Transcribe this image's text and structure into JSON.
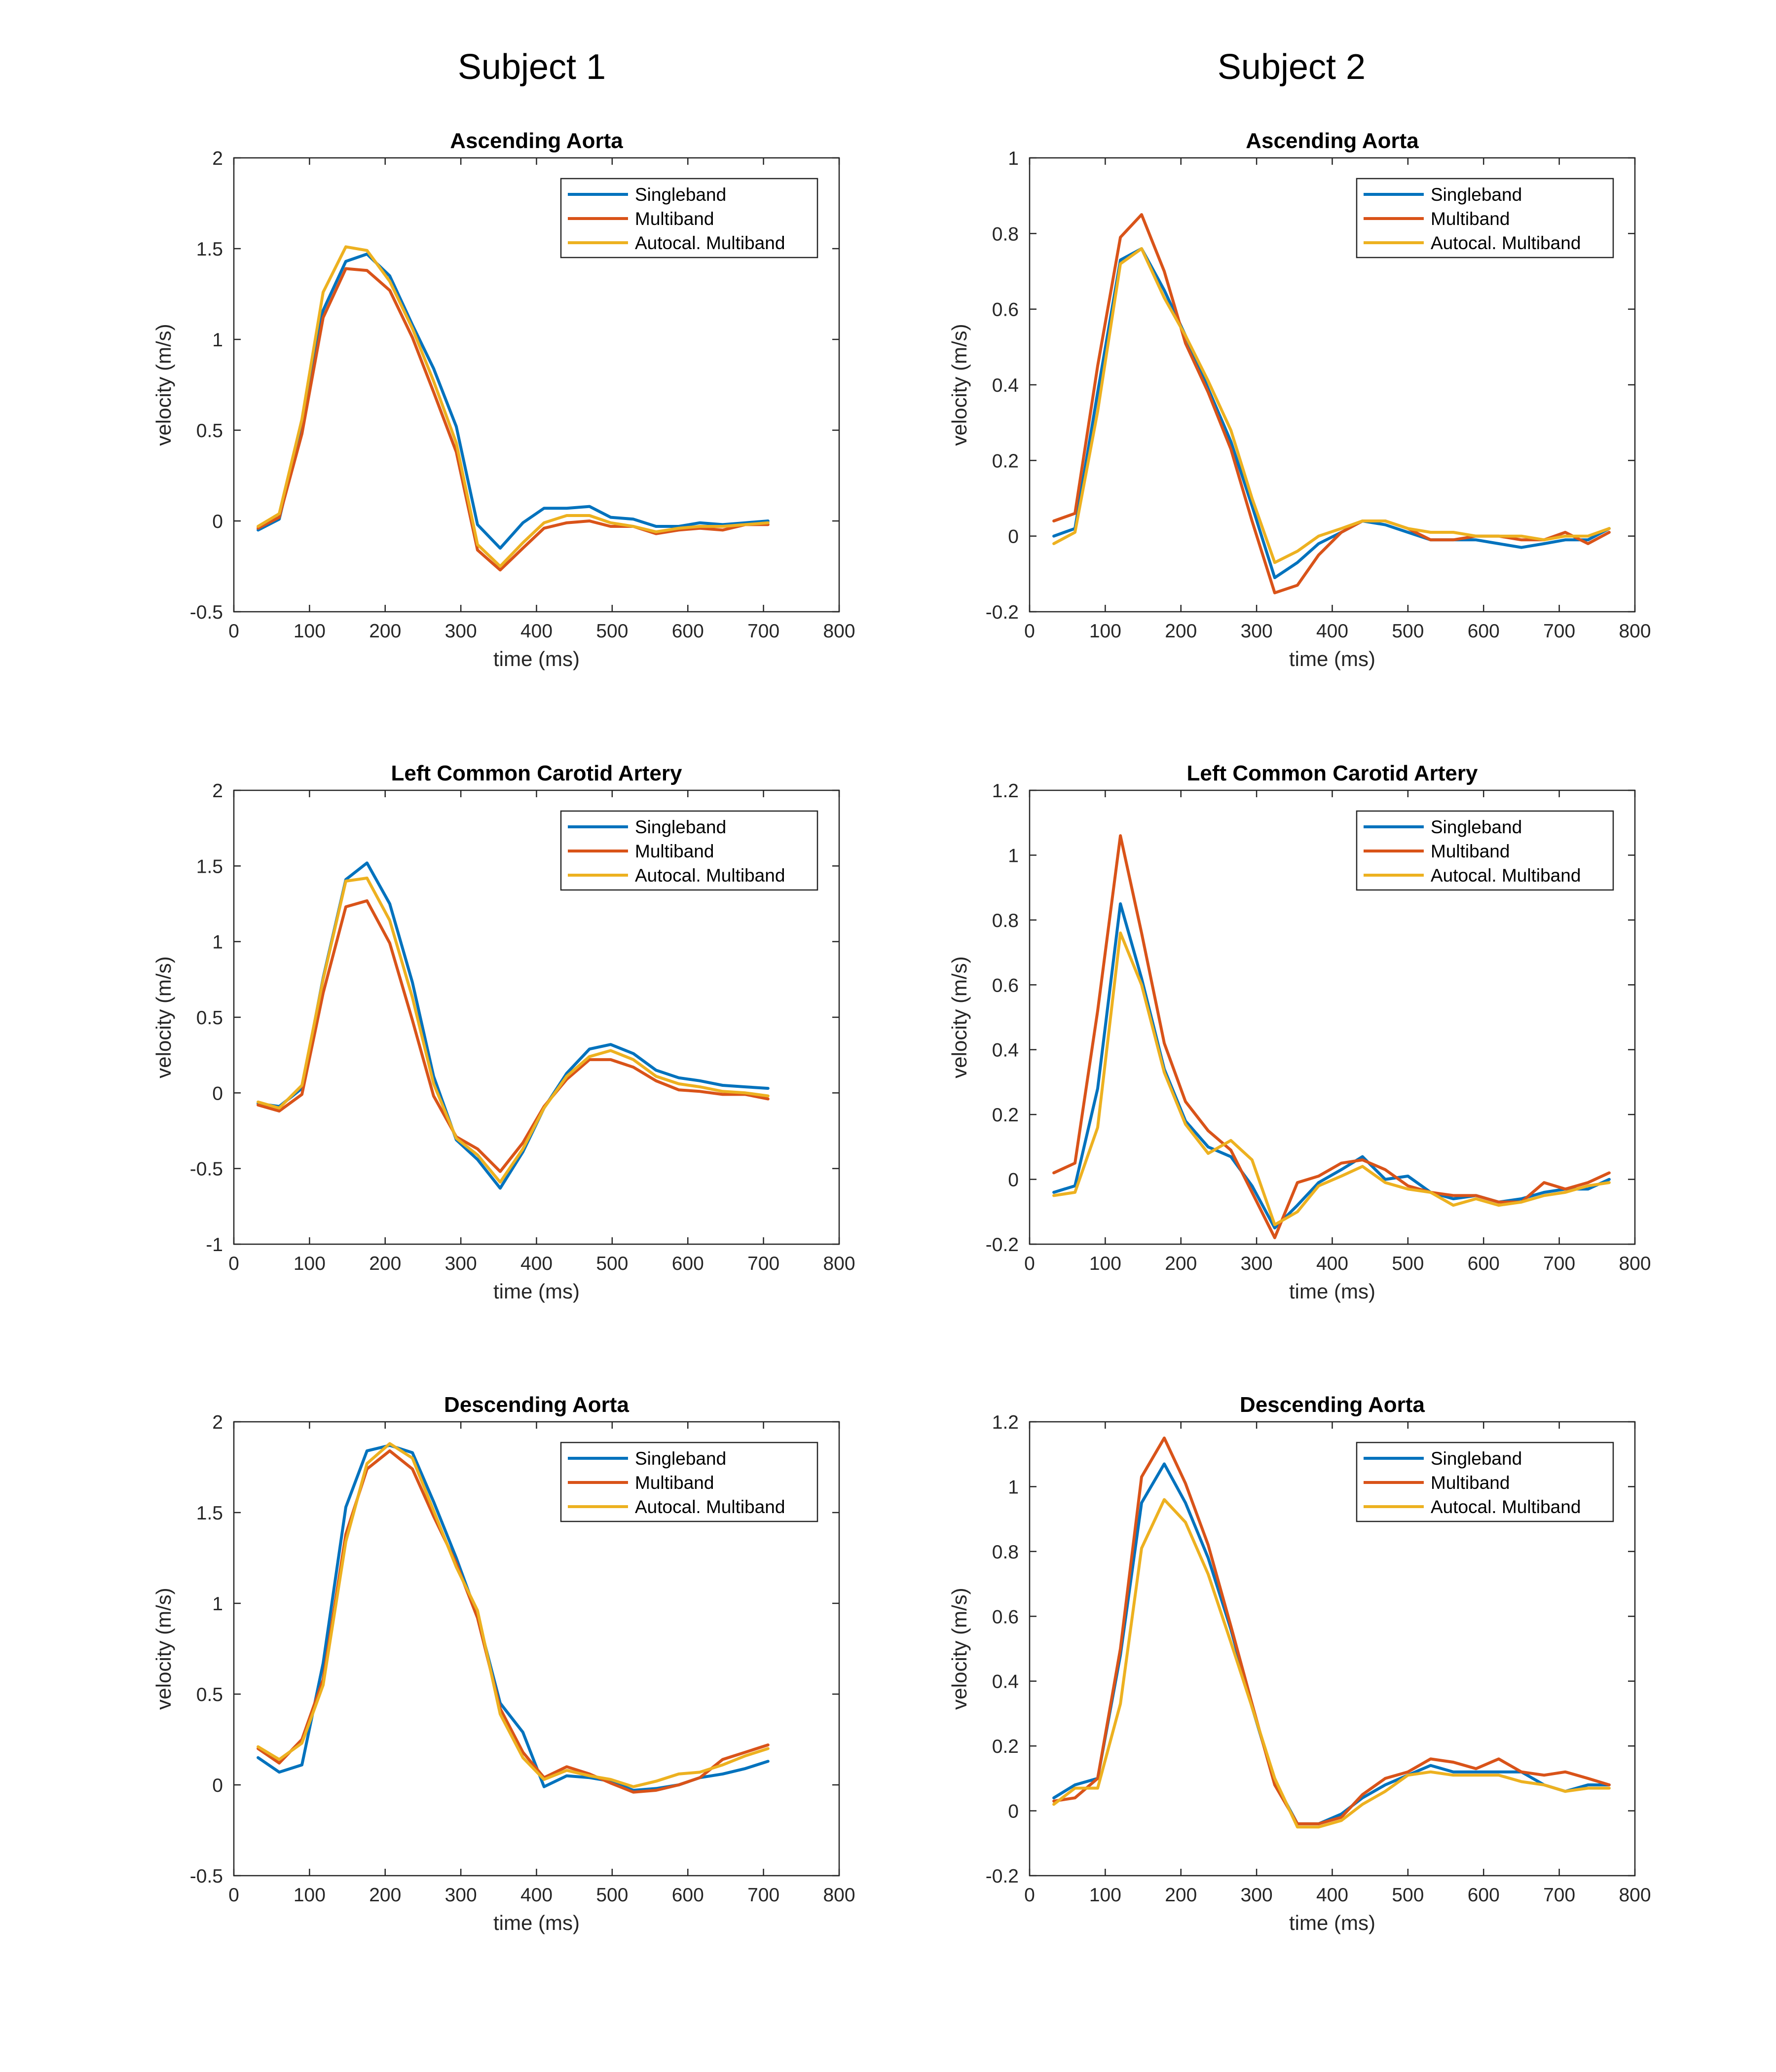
{
  "figure": {
    "column_titles": [
      "Subject 1",
      "Subject 2"
    ]
  },
  "chart_data": [
    {
      "type": "line",
      "subject": "Subject 1",
      "title": "Ascending Aorta",
      "xlabel": "time (ms)",
      "ylabel": "velocity (m/s)",
      "xlim": [
        0,
        800
      ],
      "ylim": [
        -0.5,
        2
      ],
      "xticks": [
        0,
        100,
        200,
        300,
        400,
        500,
        600,
        700,
        800
      ],
      "yticks": [
        -0.5,
        0,
        0.5,
        1,
        1.5,
        2
      ],
      "ytick_labels": [
        "-0.5",
        "0",
        "0.5",
        "1",
        "1.5",
        "2"
      ],
      "legend_position": "top-right",
      "x": [
        32,
        60,
        90,
        118,
        148,
        176,
        206,
        236,
        264,
        294,
        322,
        352,
        382,
        410,
        440,
        470,
        498,
        528,
        558,
        588,
        616,
        646,
        676,
        706
      ],
      "series": [
        {
          "name": "Singleband",
          "color": "#0072BD",
          "values": [
            -0.05,
            0.01,
            0.53,
            1.16,
            1.43,
            1.47,
            1.35,
            1.08,
            0.84,
            0.52,
            -0.02,
            -0.15,
            -0.01,
            0.07,
            0.07,
            0.08,
            0.02,
            0.01,
            -0.03,
            -0.03,
            -0.01,
            -0.02,
            -0.01,
            0.0
          ]
        },
        {
          "name": "Multiband",
          "color": "#D95319",
          "values": [
            -0.04,
            0.02,
            0.48,
            1.12,
            1.39,
            1.38,
            1.27,
            1.01,
            0.71,
            0.38,
            -0.16,
            -0.27,
            -0.15,
            -0.04,
            -0.01,
            0.0,
            -0.03,
            -0.03,
            -0.07,
            -0.05,
            -0.04,
            -0.05,
            -0.02,
            -0.02
          ]
        },
        {
          "name": "Autocal. Multiband",
          "color": "#EDB120",
          "values": [
            -0.03,
            0.04,
            0.56,
            1.26,
            1.51,
            1.49,
            1.32,
            1.06,
            0.77,
            0.43,
            -0.13,
            -0.25,
            -0.12,
            -0.01,
            0.03,
            0.03,
            -0.01,
            -0.03,
            -0.06,
            -0.04,
            -0.03,
            -0.03,
            -0.02,
            -0.01
          ]
        }
      ]
    },
    {
      "type": "line",
      "subject": "Subject 2",
      "title": "Ascending Aorta",
      "xlabel": "time (ms)",
      "ylabel": "velocity (m/s)",
      "xlim": [
        0,
        800
      ],
      "ylim": [
        -0.2,
        1
      ],
      "xticks": [
        0,
        100,
        200,
        300,
        400,
        500,
        600,
        700,
        800
      ],
      "yticks": [
        -0.2,
        0,
        0.2,
        0.4,
        0.6,
        0.8,
        1
      ],
      "ytick_labels": [
        "-0.2",
        "0",
        "0.2",
        "0.4",
        "0.6",
        "0.8",
        "1"
      ],
      "legend_position": "top-right",
      "x": [
        32,
        60,
        90,
        120,
        148,
        178,
        206,
        236,
        266,
        294,
        324,
        354,
        382,
        412,
        440,
        470,
        500,
        530,
        560,
        590,
        620,
        650,
        680,
        708,
        738,
        766
      ],
      "series": [
        {
          "name": "Singleband",
          "color": "#0072BD",
          "values": [
            0.0,
            0.02,
            0.38,
            0.73,
            0.76,
            0.65,
            0.53,
            0.39,
            0.25,
            0.08,
            -0.11,
            -0.07,
            -0.02,
            0.01,
            0.04,
            0.03,
            0.01,
            -0.01,
            -0.01,
            -0.01,
            -0.02,
            -0.03,
            -0.02,
            -0.01,
            -0.01,
            0.02
          ]
        },
        {
          "name": "Multiband",
          "color": "#D95319",
          "values": [
            0.04,
            0.06,
            0.45,
            0.79,
            0.85,
            0.7,
            0.51,
            0.38,
            0.23,
            0.04,
            -0.15,
            -0.13,
            -0.05,
            0.01,
            0.04,
            0.04,
            0.02,
            -0.01,
            -0.01,
            0.0,
            0.0,
            -0.01,
            -0.01,
            0.01,
            -0.02,
            0.01
          ]
        },
        {
          "name": "Autocal. Multiband",
          "color": "#EDB120",
          "values": [
            -0.02,
            0.01,
            0.33,
            0.72,
            0.76,
            0.63,
            0.53,
            0.41,
            0.28,
            0.1,
            -0.07,
            -0.04,
            0.0,
            0.02,
            0.04,
            0.04,
            0.02,
            0.01,
            0.01,
            0.0,
            0.0,
            0.0,
            -0.01,
            0.0,
            0.0,
            0.02
          ]
        }
      ]
    },
    {
      "type": "line",
      "subject": "Subject 1",
      "title": "Left Common Carotid Artery",
      "xlabel": "time (ms)",
      "ylabel": "velocity (m/s)",
      "xlim": [
        0,
        800
      ],
      "ylim": [
        -1,
        2
      ],
      "xticks": [
        0,
        100,
        200,
        300,
        400,
        500,
        600,
        700,
        800
      ],
      "yticks": [
        -1,
        -0.5,
        0,
        0.5,
        1,
        1.5,
        2
      ],
      "ytick_labels": [
        "-1",
        "-0.5",
        "0",
        "0.5",
        "1",
        "1.5",
        "2"
      ],
      "legend_position": "top-right",
      "x": [
        32,
        60,
        90,
        118,
        148,
        176,
        206,
        236,
        264,
        294,
        322,
        352,
        382,
        410,
        440,
        470,
        498,
        528,
        558,
        588,
        616,
        646,
        676,
        706
      ],
      "series": [
        {
          "name": "Singleband",
          "color": "#0072BD",
          "values": [
            -0.07,
            -0.09,
            0.03,
            0.76,
            1.41,
            1.52,
            1.25,
            0.73,
            0.11,
            -0.31,
            -0.44,
            -0.63,
            -0.39,
            -0.1,
            0.13,
            0.29,
            0.32,
            0.26,
            0.15,
            0.1,
            0.08,
            0.05,
            0.04,
            0.03
          ]
        },
        {
          "name": "Multiband",
          "color": "#D95319",
          "values": [
            -0.08,
            -0.12,
            -0.01,
            0.66,
            1.23,
            1.27,
            0.99,
            0.48,
            -0.02,
            -0.29,
            -0.37,
            -0.52,
            -0.33,
            -0.09,
            0.09,
            0.22,
            0.22,
            0.17,
            0.08,
            0.02,
            0.01,
            -0.01,
            -0.01,
            -0.04
          ]
        },
        {
          "name": "Autocal. Multiband",
          "color": "#EDB120",
          "values": [
            -0.06,
            -0.1,
            0.05,
            0.75,
            1.4,
            1.42,
            1.14,
            0.63,
            0.06,
            -0.3,
            -0.41,
            -0.59,
            -0.37,
            -0.1,
            0.11,
            0.24,
            0.28,
            0.22,
            0.11,
            0.06,
            0.04,
            0.01,
            0.0,
            -0.02
          ]
        }
      ]
    },
    {
      "type": "line",
      "subject": "Subject 2",
      "title": "Left Common Carotid Artery",
      "xlabel": "time (ms)",
      "ylabel": "velocity (m/s)",
      "xlim": [
        0,
        800
      ],
      "ylim": [
        -0.2,
        1.2
      ],
      "xticks": [
        0,
        100,
        200,
        300,
        400,
        500,
        600,
        700,
        800
      ],
      "yticks": [
        -0.2,
        0,
        0.2,
        0.4,
        0.6,
        0.8,
        1,
        1.2
      ],
      "ytick_labels": [
        "-0.2",
        "0",
        "0.2",
        "0.4",
        "0.6",
        "0.8",
        "1",
        "1.2"
      ],
      "legend_position": "top-right",
      "x": [
        32,
        60,
        90,
        120,
        148,
        178,
        206,
        236,
        266,
        294,
        324,
        354,
        382,
        412,
        440,
        470,
        500,
        530,
        560,
        590,
        620,
        650,
        680,
        708,
        738,
        766
      ],
      "series": [
        {
          "name": "Singleband",
          "color": "#0072BD",
          "values": [
            -0.04,
            -0.02,
            0.28,
            0.85,
            0.62,
            0.34,
            0.18,
            0.1,
            0.07,
            -0.02,
            -0.15,
            -0.08,
            -0.01,
            0.03,
            0.07,
            0.0,
            0.01,
            -0.04,
            -0.06,
            -0.05,
            -0.07,
            -0.06,
            -0.04,
            -0.03,
            -0.03,
            0.0
          ]
        },
        {
          "name": "Multiband",
          "color": "#D95319",
          "values": [
            0.02,
            0.05,
            0.52,
            1.06,
            0.76,
            0.42,
            0.24,
            0.15,
            0.09,
            -0.04,
            -0.18,
            -0.01,
            0.01,
            0.05,
            0.06,
            0.03,
            -0.02,
            -0.04,
            -0.05,
            -0.05,
            -0.07,
            -0.07,
            -0.01,
            -0.03,
            -0.01,
            0.02
          ]
        },
        {
          "name": "Autocal. Multiband",
          "color": "#EDB120",
          "values": [
            -0.05,
            -0.04,
            0.16,
            0.76,
            0.6,
            0.33,
            0.17,
            0.08,
            0.12,
            0.06,
            -0.14,
            -0.1,
            -0.02,
            0.01,
            0.04,
            -0.01,
            -0.03,
            -0.04,
            -0.08,
            -0.06,
            -0.08,
            -0.07,
            -0.05,
            -0.04,
            -0.02,
            -0.01
          ]
        }
      ]
    },
    {
      "type": "line",
      "subject": "Subject 1",
      "title": "Descending Aorta",
      "xlabel": "time (ms)",
      "ylabel": "velocity (m/s)",
      "xlim": [
        0,
        800
      ],
      "ylim": [
        -0.5,
        2
      ],
      "xticks": [
        0,
        100,
        200,
        300,
        400,
        500,
        600,
        700,
        800
      ],
      "yticks": [
        -0.5,
        0,
        0.5,
        1,
        1.5,
        2
      ],
      "ytick_labels": [
        "-0.5",
        "0",
        "0.5",
        "1",
        "1.5",
        "2"
      ],
      "legend_position": "top-right",
      "x": [
        32,
        60,
        90,
        118,
        148,
        176,
        206,
        236,
        264,
        294,
        322,
        352,
        382,
        410,
        440,
        470,
        498,
        528,
        558,
        588,
        616,
        646,
        676,
        706
      ],
      "series": [
        {
          "name": "Singleband",
          "color": "#0072BD",
          "values": [
            0.15,
            0.07,
            0.11,
            0.67,
            1.53,
            1.84,
            1.87,
            1.83,
            1.56,
            1.25,
            0.93,
            0.45,
            0.29,
            -0.01,
            0.05,
            0.04,
            0.02,
            -0.03,
            -0.02,
            0.0,
            0.04,
            0.06,
            0.09,
            0.13
          ]
        },
        {
          "name": "Multiband",
          "color": "#D95319",
          "values": [
            0.2,
            0.12,
            0.25,
            0.58,
            1.38,
            1.74,
            1.84,
            1.74,
            1.48,
            1.22,
            0.92,
            0.42,
            0.18,
            0.04,
            0.1,
            0.06,
            0.01,
            -0.04,
            -0.03,
            0.0,
            0.04,
            0.14,
            0.18,
            0.22
          ]
        },
        {
          "name": "Autocal. Multiband",
          "color": "#EDB120",
          "values": [
            0.21,
            0.14,
            0.23,
            0.55,
            1.34,
            1.77,
            1.88,
            1.8,
            1.51,
            1.2,
            0.96,
            0.39,
            0.15,
            0.03,
            0.08,
            0.05,
            0.03,
            -0.01,
            0.02,
            0.06,
            0.07,
            0.11,
            0.16,
            0.2
          ]
        }
      ]
    },
    {
      "type": "line",
      "subject": "Subject 2",
      "title": "Descending Aorta",
      "xlabel": "time (ms)",
      "ylabel": "velocity (m/s)",
      "xlim": [
        0,
        800
      ],
      "ylim": [
        -0.2,
        1.2
      ],
      "xticks": [
        0,
        100,
        200,
        300,
        400,
        500,
        600,
        700,
        800
      ],
      "yticks": [
        -0.2,
        0,
        0.2,
        0.4,
        0.6,
        0.8,
        1,
        1.2
      ],
      "ytick_labels": [
        "-0.2",
        "0",
        "0.2",
        "0.4",
        "0.6",
        "0.8",
        "1",
        "1.2"
      ],
      "legend_position": "top-right",
      "x": [
        32,
        60,
        90,
        120,
        148,
        178,
        206,
        236,
        266,
        294,
        324,
        354,
        382,
        412,
        440,
        470,
        500,
        530,
        560,
        590,
        620,
        650,
        680,
        708,
        738,
        766
      ],
      "series": [
        {
          "name": "Singleband",
          "color": "#0072BD",
          "values": [
            0.04,
            0.08,
            0.1,
            0.48,
            0.95,
            1.07,
            0.95,
            0.78,
            0.56,
            0.32,
            0.09,
            -0.04,
            -0.04,
            -0.01,
            0.04,
            0.08,
            0.11,
            0.14,
            0.12,
            0.12,
            0.12,
            0.12,
            0.08,
            0.06,
            0.08,
            0.08
          ]
        },
        {
          "name": "Multiband",
          "color": "#D95319",
          "values": [
            0.03,
            0.04,
            0.1,
            0.5,
            1.03,
            1.15,
            1.01,
            0.82,
            0.57,
            0.33,
            0.08,
            -0.04,
            -0.04,
            -0.02,
            0.05,
            0.1,
            0.12,
            0.16,
            0.15,
            0.13,
            0.16,
            0.12,
            0.11,
            0.12,
            0.1,
            0.08
          ]
        },
        {
          "name": "Autocal. Multiband",
          "color": "#EDB120",
          "values": [
            0.02,
            0.07,
            0.07,
            0.33,
            0.81,
            0.96,
            0.89,
            0.73,
            0.52,
            0.32,
            0.1,
            -0.05,
            -0.05,
            -0.03,
            0.02,
            0.06,
            0.11,
            0.12,
            0.11,
            0.11,
            0.11,
            0.09,
            0.08,
            0.06,
            0.07,
            0.07
          ]
        }
      ]
    }
  ]
}
